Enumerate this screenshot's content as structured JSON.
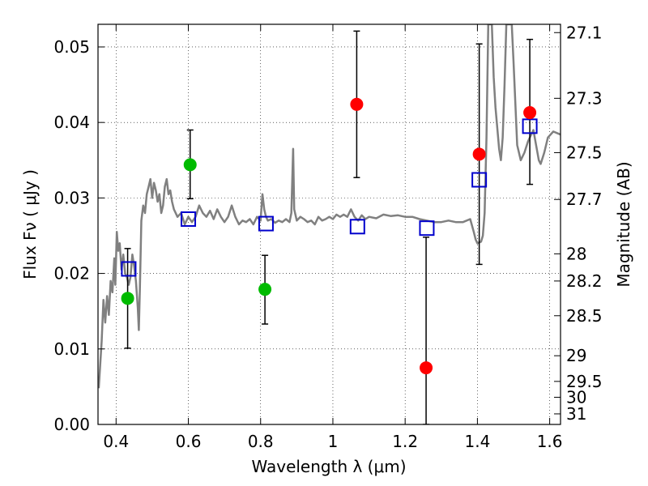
{
  "chart_data": {
    "type": "scatter",
    "xlabel": "Wavelength  λ (μm)",
    "ylabel": "Flux  Fν  ( μJy )",
    "ylabel_right": "Magnitude (AB)",
    "xlim": [
      0.35,
      1.63
    ],
    "ylim": [
      0.0,
      0.053
    ],
    "grid": true,
    "x_ticks": [
      0.4,
      0.6,
      0.8,
      1.0,
      1.2,
      1.4,
      1.6
    ],
    "x_tick_labels": [
      "0.4",
      "0.6",
      "0.8",
      "1",
      "1.2",
      "1.4",
      "1.6"
    ],
    "y_ticks": [
      0.0,
      0.01,
      0.02,
      0.03,
      0.04,
      0.05
    ],
    "y_tick_labels": [
      "0.00",
      "0.01",
      "0.02",
      "0.03",
      "0.04",
      "0.05"
    ],
    "right_ticks": [
      {
        "label": "27.1",
        "flux": 0.0519
      },
      {
        "label": "27.3",
        "flux": 0.0432
      },
      {
        "label": "27.5",
        "flux": 0.036
      },
      {
        "label": "27.7",
        "flux": 0.0298
      },
      {
        "label": "28",
        "flux": 0.0226
      },
      {
        "label": "28.2",
        "flux": 0.019
      },
      {
        "label": "28.5",
        "flux": 0.0144
      },
      {
        "label": "29",
        "flux": 0.0091
      },
      {
        "label": "29.5",
        "flux": 0.0057
      },
      {
        "label": "30",
        "flux": 0.0036
      },
      {
        "label": "31",
        "flux": 0.0014
      }
    ],
    "series": [
      {
        "style": "line",
        "color": "#808080",
        "points": [
          [
            0.352,
            0.0048
          ],
          [
            0.36,
            0.011
          ],
          [
            0.365,
            0.0165
          ],
          [
            0.37,
            0.0135
          ],
          [
            0.375,
            0.017
          ],
          [
            0.38,
            0.0145
          ],
          [
            0.385,
            0.019
          ],
          [
            0.39,
            0.0175
          ],
          [
            0.395,
            0.022
          ],
          [
            0.398,
            0.0185
          ],
          [
            0.402,
            0.0255
          ],
          [
            0.406,
            0.023
          ],
          [
            0.41,
            0.024
          ],
          [
            0.415,
            0.0205
          ],
          [
            0.42,
            0.0225
          ],
          [
            0.425,
            0.02
          ],
          [
            0.43,
            0.0195
          ],
          [
            0.435,
            0.0185
          ],
          [
            0.44,
            0.0195
          ],
          [
            0.445,
            0.0225
          ],
          [
            0.45,
            0.021
          ],
          [
            0.455,
            0.019
          ],
          [
            0.46,
            0.0155
          ],
          [
            0.463,
            0.0125
          ],
          [
            0.466,
            0.018
          ],
          [
            0.47,
            0.027
          ],
          [
            0.475,
            0.029
          ],
          [
            0.48,
            0.028
          ],
          [
            0.485,
            0.0305
          ],
          [
            0.49,
            0.0315
          ],
          [
            0.495,
            0.0325
          ],
          [
            0.5,
            0.03
          ],
          [
            0.505,
            0.032
          ],
          [
            0.51,
            0.031
          ],
          [
            0.515,
            0.0295
          ],
          [
            0.52,
            0.0305
          ],
          [
            0.525,
            0.028
          ],
          [
            0.53,
            0.029
          ],
          [
            0.535,
            0.0315
          ],
          [
            0.54,
            0.0325
          ],
          [
            0.545,
            0.0305
          ],
          [
            0.55,
            0.031
          ],
          [
            0.555,
            0.0295
          ],
          [
            0.56,
            0.0285
          ],
          [
            0.57,
            0.0275
          ],
          [
            0.58,
            0.028
          ],
          [
            0.59,
            0.0265
          ],
          [
            0.6,
            0.0275
          ],
          [
            0.61,
            0.0268
          ],
          [
            0.62,
            0.0275
          ],
          [
            0.63,
            0.029
          ],
          [
            0.64,
            0.028
          ],
          [
            0.65,
            0.0275
          ],
          [
            0.66,
            0.0283
          ],
          [
            0.67,
            0.0272
          ],
          [
            0.68,
            0.0285
          ],
          [
            0.69,
            0.0275
          ],
          [
            0.7,
            0.0268
          ],
          [
            0.71,
            0.0275
          ],
          [
            0.72,
            0.029
          ],
          [
            0.73,
            0.0275
          ],
          [
            0.74,
            0.0265
          ],
          [
            0.75,
            0.027
          ],
          [
            0.76,
            0.0268
          ],
          [
            0.77,
            0.0272
          ],
          [
            0.78,
            0.0265
          ],
          [
            0.79,
            0.0275
          ],
          [
            0.8,
            0.027
          ],
          [
            0.805,
            0.0305
          ],
          [
            0.81,
            0.0285
          ],
          [
            0.815,
            0.0275
          ],
          [
            0.82,
            0.027
          ],
          [
            0.83,
            0.0272
          ],
          [
            0.84,
            0.0267
          ],
          [
            0.85,
            0.027
          ],
          [
            0.86,
            0.0268
          ],
          [
            0.87,
            0.0272
          ],
          [
            0.88,
            0.0268
          ],
          [
            0.885,
            0.028
          ],
          [
            0.89,
            0.0365
          ],
          [
            0.893,
            0.0285
          ],
          [
            0.9,
            0.027
          ],
          [
            0.91,
            0.0275
          ],
          [
            0.92,
            0.0272
          ],
          [
            0.93,
            0.0268
          ],
          [
            0.94,
            0.027
          ],
          [
            0.95,
            0.0265
          ],
          [
            0.96,
            0.0275
          ],
          [
            0.97,
            0.027
          ],
          [
            0.98,
            0.0272
          ],
          [
            0.99,
            0.0275
          ],
          [
            1.0,
            0.0272
          ],
          [
            1.01,
            0.0278
          ],
          [
            1.02,
            0.0275
          ],
          [
            1.03,
            0.0278
          ],
          [
            1.04,
            0.0275
          ],
          [
            1.05,
            0.0285
          ],
          [
            1.06,
            0.0275
          ],
          [
            1.07,
            0.027
          ],
          [
            1.08,
            0.0277
          ],
          [
            1.09,
            0.0272
          ],
          [
            1.1,
            0.0275
          ],
          [
            1.12,
            0.0273
          ],
          [
            1.14,
            0.0278
          ],
          [
            1.16,
            0.0276
          ],
          [
            1.18,
            0.0277
          ],
          [
            1.2,
            0.0275
          ],
          [
            1.22,
            0.0275
          ],
          [
            1.24,
            0.0272
          ],
          [
            1.26,
            0.027
          ],
          [
            1.28,
            0.0268
          ],
          [
            1.3,
            0.0268
          ],
          [
            1.32,
            0.027
          ],
          [
            1.34,
            0.0268
          ],
          [
            1.36,
            0.0268
          ],
          [
            1.38,
            0.0272
          ],
          [
            1.39,
            0.0255
          ],
          [
            1.395,
            0.0245
          ],
          [
            1.4,
            0.024
          ],
          [
            1.41,
            0.0242
          ],
          [
            1.415,
            0.025
          ],
          [
            1.42,
            0.028
          ],
          [
            1.425,
            0.038
          ],
          [
            1.43,
            0.053
          ],
          [
            1.44,
            0.053
          ],
          [
            1.445,
            0.046
          ],
          [
            1.45,
            0.042
          ],
          [
            1.46,
            0.0365
          ],
          [
            1.465,
            0.035
          ],
          [
            1.47,
            0.038
          ],
          [
            1.475,
            0.045
          ],
          [
            1.48,
            0.053
          ],
          [
            1.495,
            0.053
          ],
          [
            1.5,
            0.048
          ],
          [
            1.51,
            0.037
          ],
          [
            1.52,
            0.035
          ],
          [
            1.53,
            0.036
          ],
          [
            1.54,
            0.0375
          ],
          [
            1.555,
            0.039
          ],
          [
            1.57,
            0.035
          ],
          [
            1.575,
            0.0345
          ],
          [
            1.585,
            0.036
          ],
          [
            1.595,
            0.038
          ],
          [
            1.61,
            0.0388
          ],
          [
            1.625,
            0.0385
          ],
          [
            1.63,
            0.0384
          ]
        ]
      },
      {
        "style": "open-square",
        "color": "#0000cc",
        "points": [
          [
            0.435,
            0.0206
          ],
          [
            0.6,
            0.0272
          ],
          [
            0.815,
            0.0266
          ],
          [
            1.068,
            0.0262
          ],
          [
            1.26,
            0.026
          ],
          [
            1.405,
            0.0324
          ],
          [
            1.545,
            0.0395
          ]
        ]
      },
      {
        "style": "filled-circle",
        "color": "#00bb00",
        "points": [
          {
            "x": 0.432,
            "y": 0.0167,
            "lo": 0.0101,
            "hi": 0.0233
          },
          {
            "x": 0.605,
            "y": 0.0344,
            "lo": 0.0299,
            "hi": 0.039
          },
          {
            "x": 0.812,
            "y": 0.0179,
            "lo": 0.0133,
            "hi": 0.0224
          }
        ]
      },
      {
        "style": "filled-circle",
        "color": "#ff0000",
        "points": [
          {
            "x": 1.066,
            "y": 0.0424,
            "lo": 0.0327,
            "hi": 0.0521
          },
          {
            "x": 1.258,
            "y": 0.0075,
            "lo": 0.0,
            "hi": 0.0248
          },
          {
            "x": 1.405,
            "y": 0.0358,
            "lo": 0.0212,
            "hi": 0.0504
          },
          {
            "x": 1.545,
            "y": 0.0413,
            "lo": 0.0318,
            "hi": 0.051
          }
        ]
      }
    ]
  }
}
